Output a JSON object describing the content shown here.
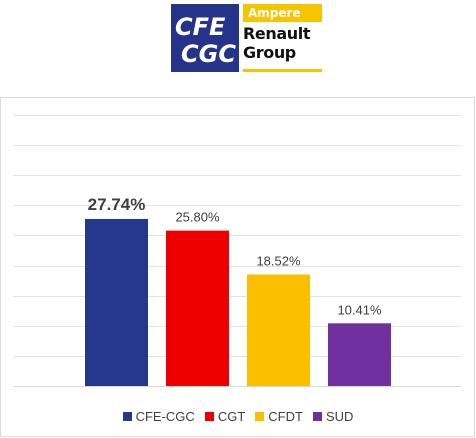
{
  "logo": {
    "cfe_line1": "CFE",
    "cfe_line2": "CGC",
    "ampere": "Ampere",
    "renault_line1": "Renault",
    "renault_line2": "Group",
    "colors": {
      "cfe_bg": "#26338a",
      "ampere_bg": "#f7c400"
    }
  },
  "chart_data": {
    "type": "bar",
    "categories": [
      "CFE-CGC",
      "CGT",
      "CFDT",
      "SUD"
    ],
    "values": [
      27.74,
      25.8,
      18.52,
      10.41
    ],
    "data_labels": [
      "27.74%",
      "25.80%",
      "18.52%",
      "10.41%"
    ],
    "colors": [
      "#26388c",
      "#ee0000",
      "#fcbf00",
      "#7030a0"
    ],
    "title": "",
    "xlabel": "",
    "ylabel": "",
    "ylim": [
      0,
      45
    ],
    "grid": true,
    "legend_position": "bottom",
    "highlight_first_label": true
  }
}
